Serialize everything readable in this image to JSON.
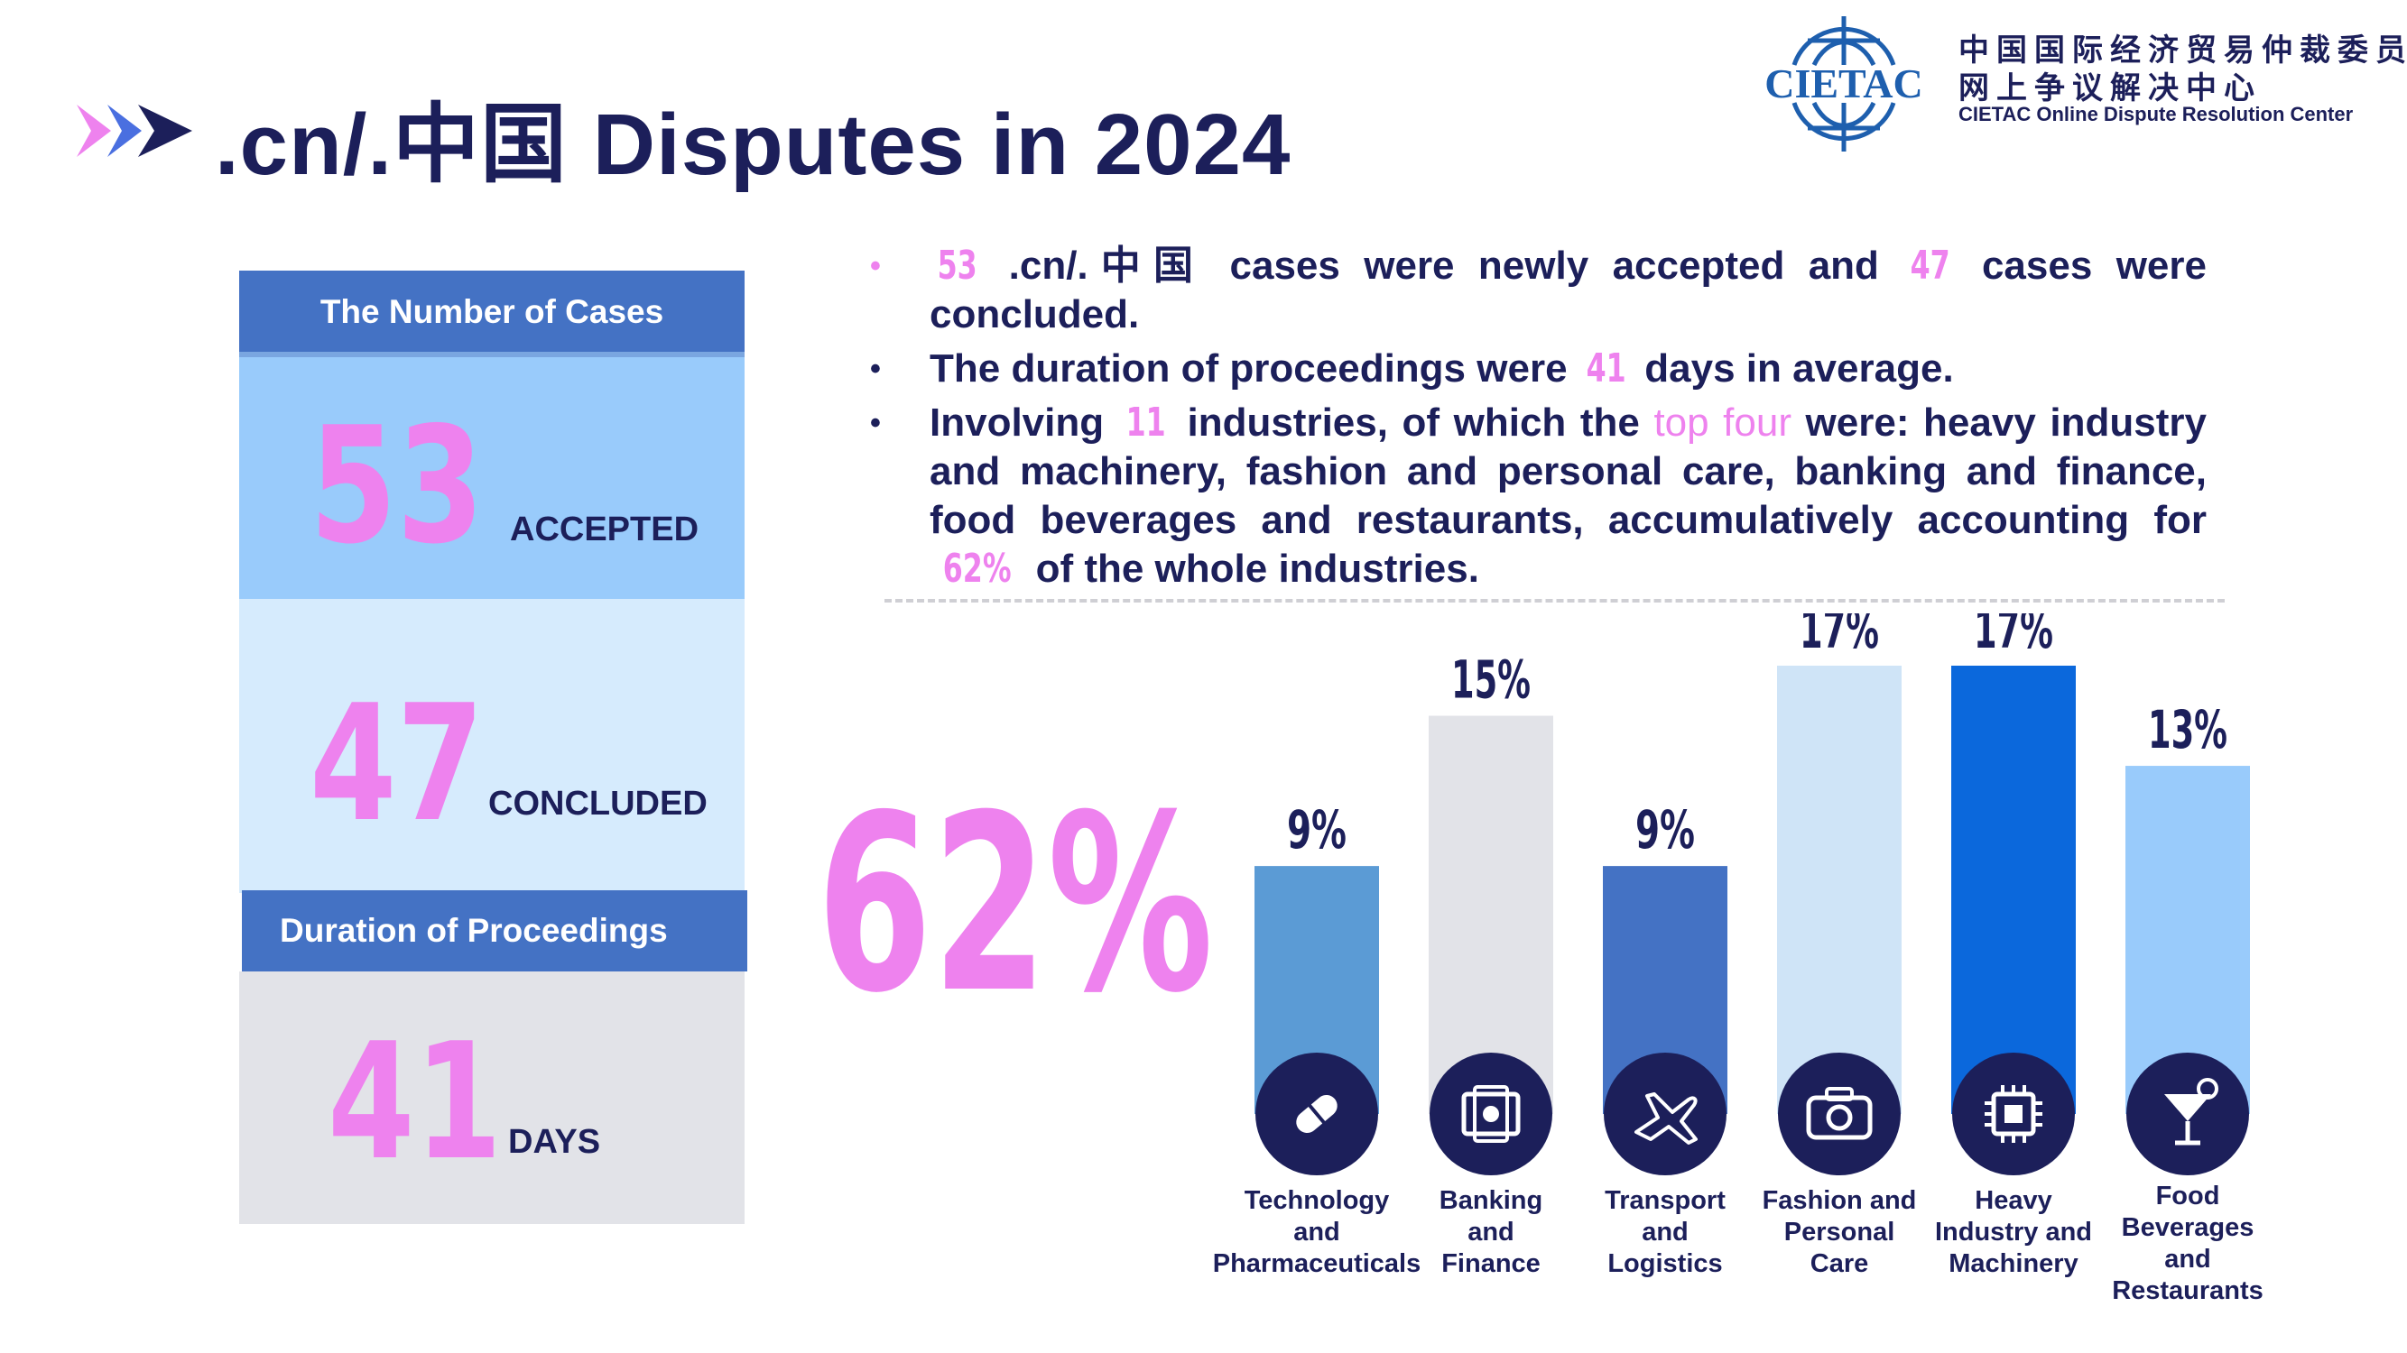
{
  "header": {
    "title": ".cn/.中国 Disputes in 2024",
    "logo_text": "CIETAC",
    "org_zh_line1": "中国国际经济贸易仲裁委员会",
    "org_zh_line2": "网上争议解决中心",
    "org_en": "CIETAC Online Dispute Resolution Center"
  },
  "panel": {
    "cases_heading": "The Number of Cases",
    "accepted_value": "53",
    "accepted_label": "ACCEPTED",
    "concluded_value": "47",
    "concluded_label": "CONCLUDED",
    "duration_heading": "Duration of Proceedings",
    "days_value": "41",
    "days_label": "DAYS"
  },
  "bullets": {
    "b1_n1": "53",
    "b1_t1": ".cn/.中国 cases were newly accepted and",
    "b1_n2": "47",
    "b1_t2": "cases were concluded.",
    "b2_t1": "The duration of proceedings were",
    "b2_n1": "41",
    "b2_t2": "days in average.",
    "b3_t1": "Involving",
    "b3_n1": "11",
    "b3_t2": "industries, of which the",
    "b3_hl": "top four",
    "b3_t3": "were: heavy industry and machinery, fashion and personal care, banking and finance, food beverages and restaurants, accumulatively accounting for",
    "b3_n2": "62%",
    "b3_t4": "of the whole industries."
  },
  "big_percent": "62%",
  "colors": {
    "accent_pink": "#ee82ee",
    "navy": "#1c1f5a",
    "header_blue": "#4472c4"
  },
  "chart_data": {
    "type": "bar",
    "categories": [
      "Technology and Pharmaceuticals",
      "Banking and Finance",
      "Transport and Logistics",
      "Fashion and Personal Care",
      "Heavy Industry and Machinery",
      "Food Beverages and Restaurants"
    ],
    "label_lines": [
      [
        "Technology",
        "and",
        "Pharmaceuticals"
      ],
      [
        "Banking",
        "and",
        "Finance"
      ],
      [
        "Transport",
        "and",
        "Logistics"
      ],
      [
        "Fashion and",
        "Personal",
        "Care"
      ],
      [
        "Heavy",
        "Industry and",
        "Machinery"
      ],
      [
        "Food",
        "Beverages",
        "and",
        "Restaurants"
      ]
    ],
    "values": [
      9,
      15,
      9,
      17,
      17,
      13
    ],
    "value_labels": [
      "9%",
      "15%",
      "9%",
      "17%",
      "17%",
      "13%"
    ],
    "bar_colors": [
      "#5b9bd5",
      "#e2e3e8",
      "#4472c4",
      "#cfe4f7",
      "#0b68dc",
      "#99cbfb"
    ],
    "icons": [
      "pill-icon",
      "money-icon",
      "airplane-icon",
      "camera-icon",
      "chip-icon",
      "cocktail-icon"
    ],
    "unit": "%",
    "ylim": [
      0,
      17
    ]
  }
}
